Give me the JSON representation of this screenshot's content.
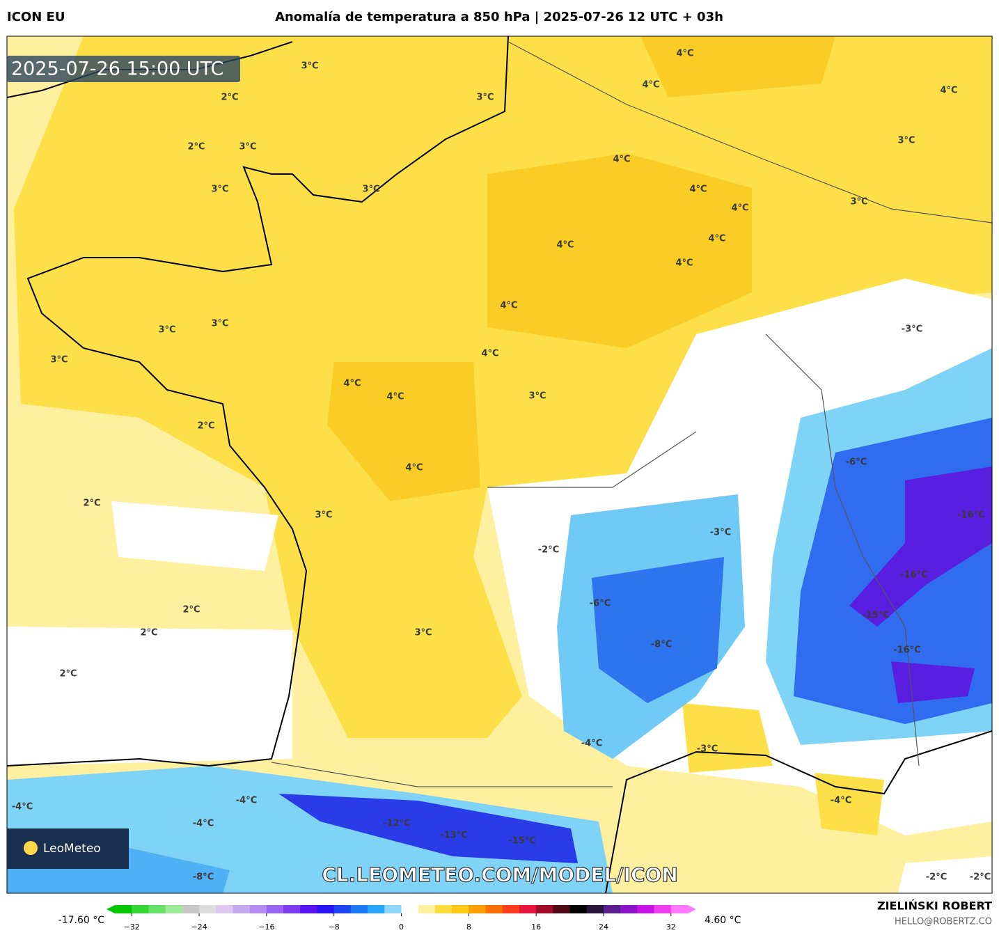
{
  "header": {
    "model": "ICON EU",
    "title": "Anomalía de temperatura a 850 hPa | 2025-07-26 12 UTC + 03h"
  },
  "timestamp": "2025-07-26 15:00 UTC",
  "map": {
    "labels": [
      "3°C",
      "2°C",
      "3°C",
      "4°C",
      "4°C",
      "4°C",
      "2°C",
      "3°C",
      "3°C",
      "4°C",
      "3°C",
      "3°C",
      "4°C",
      "4°C",
      "3°C",
      "4°C",
      "4°C",
      "4°C",
      "4°C",
      "3°C",
      "3°C",
      "-3°C",
      "3°C",
      "4°C",
      "4°C",
      "4°C",
      "3°C",
      "2°C",
      "-6°C",
      "4°C",
      "2°C",
      "3°C",
      "-16°C",
      "-3°C",
      "-2°C",
      "-16°C",
      "-6°C",
      "2°C",
      "-15°C",
      "2°C",
      "3°C",
      "-8°C",
      "-16°C",
      "2°C",
      "-4°C",
      "-3°C",
      "-4°C",
      "-4°C",
      "-4°C",
      "-4°C",
      "-12°C",
      "-13°C",
      "-15°C",
      "-8°C",
      "-2°C",
      "-2°C"
    ]
  },
  "watermark": "CL.LEOMETEO.COM/MODEL/ICON",
  "logo": "LeoMeteo",
  "colorbar": {
    "min_label": "-17.60 °C",
    "max_label": "4.60 °C",
    "lim": [
      -34,
      34
    ],
    "ticks": [
      {
        "value": -32,
        "label": "−32"
      },
      {
        "value": -24,
        "label": "−24"
      },
      {
        "value": -16,
        "label": "−16"
      },
      {
        "value": -8,
        "label": "−8"
      },
      0,
      8,
      16,
      24,
      32
    ],
    "colors": [
      "#00c800",
      "#33d633",
      "#66e066",
      "#99eb99",
      "#c8c8c8",
      "#dcdcdc",
      "#dcc8f0",
      "#c8aaf0",
      "#b48cf0",
      "#9b64f0",
      "#7d3cf0",
      "#5a14f0",
      "#2814f0",
      "#1e46f5",
      "#1e78f5",
      "#28a5f8",
      "#8cd7fa",
      "#ffffff",
      "#fff0a0",
      "#ffdc3c",
      "#ffc814",
      "#ffa000",
      "#ff6e00",
      "#ff3c1e",
      "#e6143c",
      "#a00a28",
      "#500a14",
      "#000000",
      "#28143c",
      "#5a1e8c",
      "#8c14c8",
      "#c814e6",
      "#f03cf0",
      "#ff78ff"
    ]
  },
  "footer": {
    "author": "ZIELIŃSKI ROBERT",
    "email": "HELLO@ROBERTZ.CO"
  }
}
